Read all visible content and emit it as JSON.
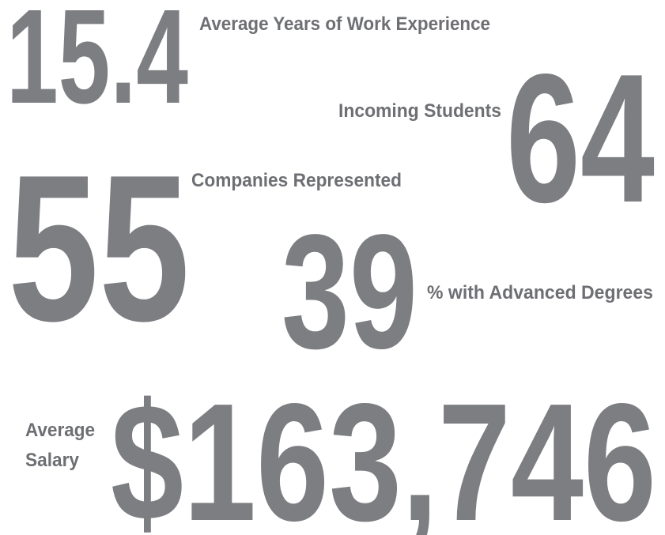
{
  "stats": [
    {
      "value": "15.4",
      "label": "Average Years of Work Experience"
    },
    {
      "value": "64",
      "label": "Incoming Students"
    },
    {
      "value": "55",
      "label": "Companies Represented"
    },
    {
      "value": "39",
      "label": "% with Advanced Degrees"
    },
    {
      "value": "$163,746",
      "label_lines": [
        "Average",
        "Salary"
      ]
    }
  ]
}
